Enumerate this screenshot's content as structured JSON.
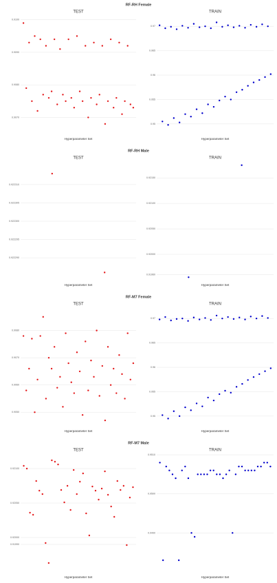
{
  "section_titles": [
    "RF-RH Female",
    "RF-RH Male",
    "RF-M7 Female",
    "RF-M7 Male"
  ],
  "chart_data": [
    {
      "type": "scatter",
      "title": "TEST",
      "xlabel": "Hyperparameter Set",
      "color": "#e41a1c",
      "grid": true,
      "x": [
        1,
        2,
        3,
        4,
        5,
        6,
        7,
        8,
        9,
        10,
        11,
        12,
        13,
        14,
        15,
        16,
        17,
        18,
        19,
        20,
        21,
        22,
        23,
        24,
        25,
        26,
        27,
        28,
        29,
        30,
        31,
        32,
        33,
        34,
        35,
        36,
        37,
        38,
        39,
        40
      ],
      "xlim": [
        0,
        41
      ],
      "values": [
        0.9099,
        0.9079,
        0.9093,
        0.9075,
        0.9095,
        0.9072,
        0.9094,
        0.9077,
        0.9092,
        0.9076,
        0.9078,
        0.9094,
        0.9074,
        0.9091,
        0.9077,
        0.9075,
        0.9094,
        0.9076,
        0.9073,
        0.9095,
        0.9078,
        0.9075,
        0.9092,
        0.907,
        0.9076,
        0.9093,
        0.9074,
        0.9077,
        0.9092,
        0.9068,
        0.9075,
        0.9094,
        0.9073,
        0.9076,
        0.9093,
        0.9071,
        0.9075,
        0.9092,
        0.9074,
        0.9073
      ],
      "ylim": [
        0.9065,
        0.9101
      ],
      "yticks": [
        {
          "value": 0.907,
          "label": "0.9070"
        },
        {
          "value": 0.908,
          "label": "0.9080"
        },
        {
          "value": 0.909,
          "label": "0.9090"
        },
        {
          "value": 0.91,
          "label": "0.9100"
        }
      ]
    },
    {
      "type": "scatter",
      "title": "TRAIN",
      "xlabel": "Hyperparameter Set",
      "color": "#0000cc",
      "grid": true,
      "x": [
        1,
        2,
        3,
        4,
        5,
        6,
        7,
        8,
        9,
        10,
        11,
        12,
        13,
        14,
        15,
        16,
        17,
        18,
        19,
        20,
        21,
        22,
        23,
        24,
        25,
        26,
        27,
        28,
        29,
        30,
        31,
        32,
        33,
        34,
        35,
        36,
        37,
        38,
        39,
        40
      ],
      "xlim": [
        0,
        41
      ],
      "values": [
        0.9702,
        0.9505,
        0.9696,
        0.9498,
        0.9699,
        0.9512,
        0.9694,
        0.9503,
        0.9701,
        0.952,
        0.9697,
        0.9515,
        0.9705,
        0.953,
        0.9698,
        0.9522,
        0.97,
        0.954,
        0.9696,
        0.9535,
        0.9708,
        0.9548,
        0.9699,
        0.9556,
        0.9702,
        0.955,
        0.9698,
        0.9565,
        0.9701,
        0.957,
        0.9697,
        0.9578,
        0.9703,
        0.9585,
        0.9699,
        0.959,
        0.9704,
        0.9596,
        0.97,
        0.9602
      ],
      "ylim": [
        0.948,
        0.972
      ],
      "yticks": [
        0.95,
        0.955,
        0.96,
        0.965,
        0.97
      ]
    },
    {
      "type": "scatter",
      "title": "TEST",
      "xlabel": "Hyperparameter Set",
      "color": "#e41a1c",
      "grid": true,
      "x": [
        1,
        2
      ],
      "xlim": [
        0.4,
        2.6
      ],
      "values": [
        0.922313,
        0.922286
      ],
      "ylim": [
        0.922284,
        0.922316
      ],
      "yticks": [
        {
          "value": 0.92229,
          "label": "0.922290"
        },
        {
          "value": 0.922295,
          "label": "0.922295"
        },
        {
          "value": 0.9223,
          "label": "0.922300"
        },
        {
          "value": 0.922305,
          "label": "0.922305"
        },
        {
          "value": 0.92231,
          "label": "0.922310"
        }
      ]
    },
    {
      "type": "scatter",
      "title": "TRAIN",
      "xlabel": "Hyperparameter Set",
      "color": "#0000cc",
      "grid": true,
      "x": [
        1,
        2
      ],
      "xlim": [
        0.4,
        2.6
      ],
      "values": [
        0.91955,
        0.92175
      ],
      "ylim": [
        0.9195,
        0.9218
      ],
      "yticks": [
        {
          "value": 0.9196,
          "label": "0.91960"
        },
        {
          "value": 0.92,
          "label": "0.92000"
        },
        {
          "value": 0.9205,
          "label": "0.92050"
        },
        {
          "value": 0.921,
          "label": "0.92100"
        },
        {
          "value": 0.9215,
          "label": "0.92150"
        }
      ]
    },
    {
      "type": "scatter",
      "title": "TEST",
      "xlabel": "Hyperparameter Set",
      "color": "#e41a1c",
      "grid": true,
      "x": [
        1,
        2,
        3,
        4,
        5,
        6,
        7,
        8,
        9,
        10,
        11,
        12,
        13,
        14,
        15,
        16,
        17,
        18,
        19,
        20,
        21,
        22,
        23,
        24,
        25,
        26,
        27,
        28,
        29,
        30,
        31,
        32,
        33,
        34,
        35,
        36,
        37,
        38,
        39,
        40
      ],
      "xlim": [
        0,
        41
      ],
      "values": [
        0.9078,
        0.9058,
        0.9066,
        0.9077,
        0.905,
        0.9062,
        0.9078,
        0.9085,
        0.9055,
        0.907,
        0.9066,
        0.9074,
        0.9059,
        0.9063,
        0.9052,
        0.9079,
        0.9068,
        0.9061,
        0.9057,
        0.9072,
        0.9065,
        0.9049,
        0.9076,
        0.9058,
        0.9069,
        0.9063,
        0.908,
        0.9056,
        0.9067,
        0.9047,
        0.9074,
        0.906,
        0.9066,
        0.9057,
        0.9071,
        0.9064,
        0.9055,
        0.9079,
        0.9062,
        0.9068
      ],
      "ylim": [
        0.9045,
        0.9088
      ],
      "yticks": [
        {
          "value": 0.905,
          "label": "0.9050"
        },
        {
          "value": 0.906,
          "label": "0.9060"
        },
        {
          "value": 0.907,
          "label": "0.9070"
        },
        {
          "value": 0.908,
          "label": "0.9080"
        }
      ]
    },
    {
      "type": "scatter",
      "title": "TRAIN",
      "xlabel": "Hyperparameter Set",
      "color": "#0000cc",
      "grid": true,
      "x": [
        1,
        2,
        3,
        4,
        5,
        6,
        7,
        8,
        9,
        10,
        11,
        12,
        13,
        14,
        15,
        16,
        17,
        18,
        19,
        20,
        21,
        22,
        23,
        24,
        25,
        26,
        27,
        28,
        29,
        30,
        31,
        32,
        33,
        34,
        35,
        36,
        37,
        38,
        39,
        40
      ],
      "xlim": [
        0,
        41
      ],
      "values": [
        0.9698,
        0.9502,
        0.9703,
        0.9495,
        0.9696,
        0.951,
        0.9699,
        0.95,
        0.97,
        0.9518,
        0.9695,
        0.9512,
        0.9702,
        0.9526,
        0.9698,
        0.952,
        0.9701,
        0.9538,
        0.9697,
        0.9532,
        0.9706,
        0.9545,
        0.97,
        0.9552,
        0.9703,
        0.9548,
        0.9699,
        0.956,
        0.9702,
        0.9566,
        0.9698,
        0.9574,
        0.9704,
        0.958,
        0.97,
        0.9586,
        0.9705,
        0.9592,
        0.9701,
        0.9598
      ],
      "ylim": [
        0.948,
        0.972
      ],
      "yticks": [
        0.95,
        0.955,
        0.96,
        0.965,
        0.97
      ]
    },
    {
      "type": "scatter",
      "title": "TEST",
      "xlabel": "Hyperparameter Set",
      "color": "#e41a1c",
      "grid": true,
      "x": [
        1,
        2,
        3,
        4,
        5,
        6,
        7,
        8,
        9,
        10,
        11,
        12,
        13,
        14,
        15,
        16,
        17,
        18,
        19,
        20,
        21,
        22,
        23,
        24,
        25,
        26,
        27,
        28,
        29,
        30,
        31,
        32,
        33,
        34,
        35,
        36
      ],
      "xlim": [
        0,
        37
      ],
      "values": [
        0.92104,
        0.921,
        0.92036,
        0.92033,
        0.92082,
        0.92068,
        0.92063,
        0.91992,
        0.91963,
        0.92112,
        0.9211,
        0.92106,
        0.92069,
        0.92051,
        0.92075,
        0.9204,
        0.92098,
        0.92063,
        0.92081,
        0.92093,
        0.92035,
        0.92003,
        0.92074,
        0.92068,
        0.92055,
        0.92071,
        0.92096,
        0.92062,
        0.92045,
        0.9203,
        0.92082,
        0.92069,
        0.92075,
        0.91989,
        0.92058,
        0.92073
      ],
      "ylim": [
        0.9195,
        0.9212
      ],
      "yticks": [
        {
          "value": 0.9199,
          "label": "0.91990"
        },
        {
          "value": 0.92,
          "label": "0.92000"
        },
        {
          "value": 0.9205,
          "label": "0.92050"
        },
        {
          "value": 0.921,
          "label": "0.92100"
        }
      ]
    },
    {
      "type": "scatter",
      "title": "TRAIN",
      "xlabel": "Hyperparameter Set",
      "color": "#0000cc",
      "grid": true,
      "x": [
        1,
        2,
        3,
        4,
        5,
        6,
        7,
        8,
        9,
        10,
        11,
        12,
        13,
        14,
        15,
        16,
        17,
        18,
        19,
        20,
        21,
        22,
        23,
        24,
        25,
        26,
        27,
        28,
        29,
        30,
        31,
        32,
        33,
        34,
        35,
        36
      ],
      "xlim": [
        0,
        37
      ],
      "values": [
        0.9508,
        0.9483,
        0.9507,
        0.9506,
        0.9505,
        0.9504,
        0.9483,
        0.9506,
        0.9507,
        0.9504,
        0.949,
        0.9489,
        0.9505,
        0.9505,
        0.9505,
        0.9505,
        0.9506,
        0.9506,
        0.9505,
        0.9505,
        0.9504,
        0.9505,
        0.9506,
        0.949,
        0.9505,
        0.9507,
        0.9507,
        0.9506,
        0.9506,
        0.9506,
        0.9506,
        0.9507,
        0.9507,
        0.9508,
        0.9508,
        0.9507
      ],
      "ylim": [
        0.948,
        0.951
      ],
      "yticks": [
        {
          "value": 0.949,
          "label": "0.9490"
        },
        {
          "value": 0.95,
          "label": "0.9500"
        },
        {
          "value": 0.951,
          "label": "0.9510"
        }
      ]
    }
  ]
}
